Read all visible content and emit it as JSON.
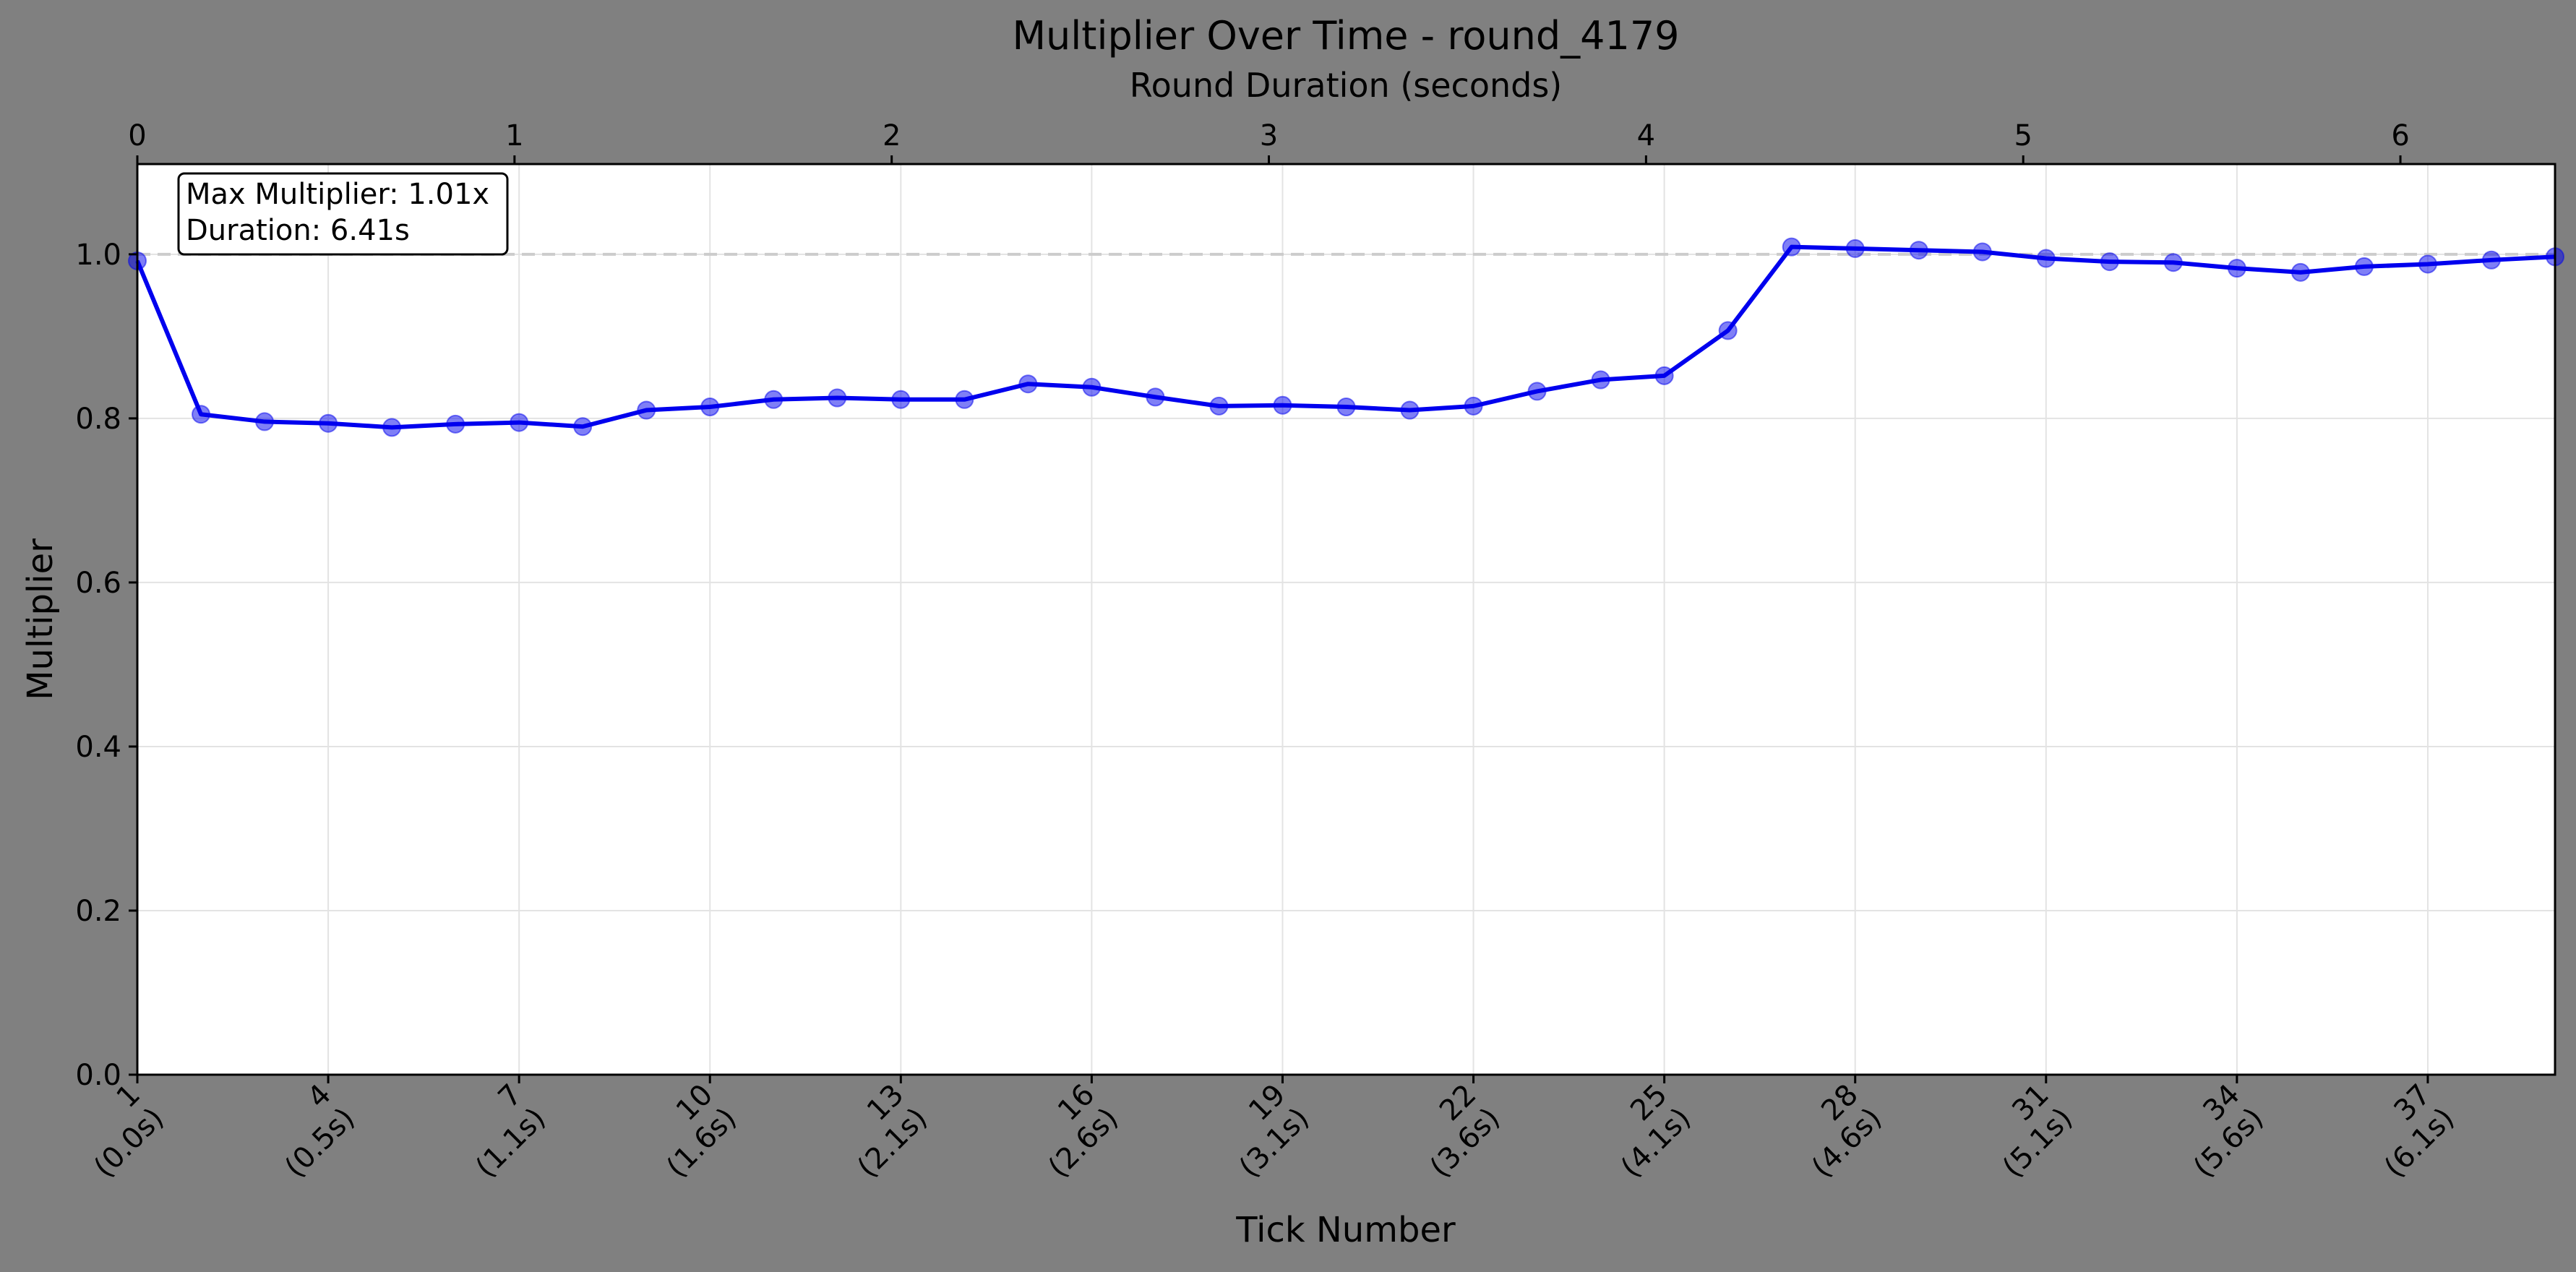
{
  "chart_data": {
    "type": "line",
    "title": "Multiplier Over Time - round_4179",
    "xlabel": "Tick Number",
    "x2label": "Round Duration (seconds)",
    "ylabel": "Multiplier",
    "ylim": [
      0.0,
      1.11
    ],
    "xlim": [
      1,
      39
    ],
    "x2lim": [
      0,
      6.41
    ],
    "grid": true,
    "yticks": [
      "0.0",
      "0.2",
      "0.4",
      "0.6",
      "0.8",
      "1.0"
    ],
    "xticks": [
      {
        "tick": 1,
        "label_top": "1",
        "label_bottom": "(0.0s)"
      },
      {
        "tick": 4,
        "label_top": "4",
        "label_bottom": "(0.5s)"
      },
      {
        "tick": 7,
        "label_top": "7",
        "label_bottom": "(1.1s)"
      },
      {
        "tick": 10,
        "label_top": "10",
        "label_bottom": "(1.6s)"
      },
      {
        "tick": 13,
        "label_top": "13",
        "label_bottom": "(2.1s)"
      },
      {
        "tick": 16,
        "label_top": "16",
        "label_bottom": "(2.6s)"
      },
      {
        "tick": 19,
        "label_top": "19",
        "label_bottom": "(3.1s)"
      },
      {
        "tick": 22,
        "label_top": "22",
        "label_bottom": "(3.6s)"
      },
      {
        "tick": 25,
        "label_top": "25",
        "label_bottom": "(4.1s)"
      },
      {
        "tick": 28,
        "label_top": "28",
        "label_bottom": "(4.6s)"
      },
      {
        "tick": 31,
        "label_top": "31",
        "label_bottom": "(5.1s)"
      },
      {
        "tick": 34,
        "label_top": "34",
        "label_bottom": "(5.6s)"
      },
      {
        "tick": 37,
        "label_top": "37",
        "label_bottom": "(6.1s)"
      }
    ],
    "x2ticks": [
      "0",
      "1",
      "2",
      "3",
      "4",
      "5",
      "6"
    ],
    "reference_line": {
      "y": 1.0,
      "style": "dashed"
    },
    "annotation": [
      "Max Multiplier: 1.01x",
      "Duration: 6.41s"
    ],
    "series": [
      {
        "color": "#0000ee",
        "x": [
          1,
          2,
          3,
          4,
          5,
          6,
          7,
          8,
          9,
          10,
          11,
          12,
          13,
          14,
          15,
          16,
          17,
          18,
          19,
          20,
          21,
          22,
          23,
          24,
          25,
          26,
          27,
          28,
          29,
          30,
          31,
          32,
          33,
          34,
          35,
          36,
          37,
          38,
          39
        ],
        "values": [
          0.992,
          0.805,
          0.796,
          0.794,
          0.789,
          0.793,
          0.795,
          0.79,
          0.81,
          0.814,
          0.823,
          0.825,
          0.823,
          0.823,
          0.842,
          0.838,
          0.826,
          0.815,
          0.816,
          0.814,
          0.81,
          0.815,
          0.833,
          0.847,
          0.852,
          0.907,
          1.009,
          1.007,
          1.005,
          1.003,
          0.995,
          0.991,
          0.99,
          0.983,
          0.978,
          0.985,
          0.988,
          0.993,
          0.997
        ]
      }
    ]
  }
}
